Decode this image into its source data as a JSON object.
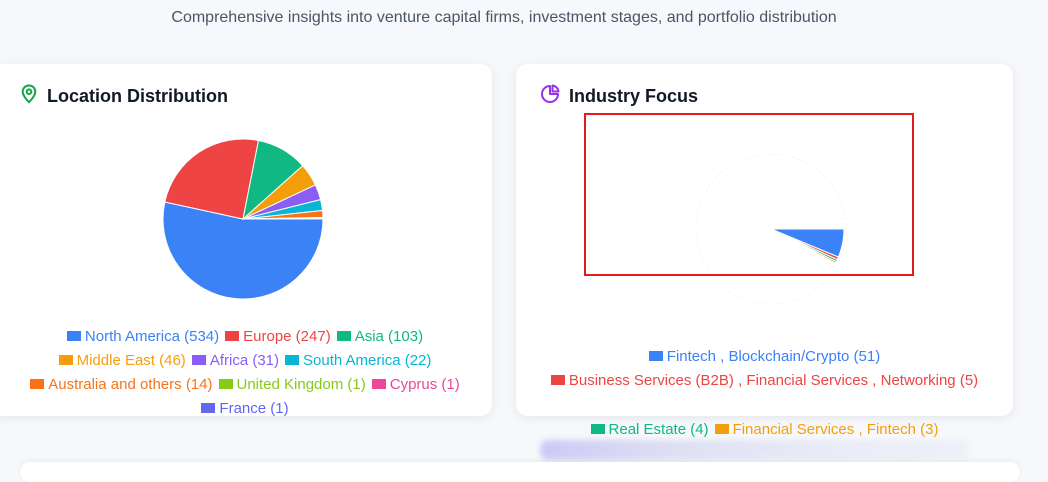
{
  "subtitle": "Comprehensive insights into venture capital firms, investment stages, and portfolio distribution",
  "location_card": {
    "title": "Location Distribution",
    "icon": "map-pin-icon"
  },
  "industry_card": {
    "title": "Industry Focus",
    "icon": "pie-chart-icon"
  },
  "colors": {
    "accent_green": "#16a34a",
    "accent_purple": "#9333ea",
    "highlight_border": "#e11d1d"
  },
  "chart_data": [
    {
      "type": "pie",
      "title": "Location Distribution",
      "slices": [
        {
          "label": "North America",
          "value": 534,
          "color": "#3b82f6"
        },
        {
          "label": "Europe",
          "value": 247,
          "color": "#ef4444"
        },
        {
          "label": "Asia",
          "value": 103,
          "color": "#10b981"
        },
        {
          "label": "Middle East",
          "value": 46,
          "color": "#f59e0b"
        },
        {
          "label": "Africa",
          "value": 31,
          "color": "#8b5cf6"
        },
        {
          "label": "South America",
          "value": 22,
          "color": "#06b6d4"
        },
        {
          "label": "Australia and others",
          "value": 14,
          "color": "#f97316"
        },
        {
          "label": "United Kingdom",
          "value": 1,
          "color": "#84cc16"
        },
        {
          "label": "Cyprus",
          "value": 1,
          "color": "#ec4899"
        },
        {
          "label": "France",
          "value": 1,
          "color": "#6366f1"
        }
      ]
    },
    {
      "type": "pie",
      "title": "Industry Focus",
      "animating": true,
      "slices": [
        {
          "label": "Fintech , Blockchain/Crypto",
          "value": 51,
          "color": "#3b82f6"
        },
        {
          "label": "Business Services (B2B) , Financial Services , Networking",
          "value": 5,
          "color": "#ef4444"
        },
        {
          "label": "Real Estate",
          "value": 4,
          "color": "#10b981"
        },
        {
          "label": "Financial Services , Fintech",
          "value": 3,
          "color": "#f59e0b"
        }
      ]
    }
  ]
}
